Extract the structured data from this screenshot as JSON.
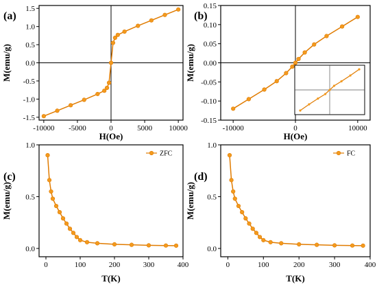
{
  "panel_labels": [
    "(a)",
    "(b)",
    "(c)",
    "(d)"
  ],
  "colors": {
    "series": "#f39a1e",
    "stroke": "#e07b00",
    "axis": "#000000"
  },
  "chart_data": [
    {
      "panel": "(a)",
      "type": "line",
      "xlabel": "H(Oe)",
      "ylabel": "M(emu/g)",
      "xlim": [
        -10700,
        10700
      ],
      "ylim": [
        -1.58,
        1.58
      ],
      "xticks": [
        -10000,
        -5000,
        0,
        5000,
        10000
      ],
      "yticks": [
        -1.5,
        -1.0,
        -0.5,
        0.0,
        0.5,
        1.0,
        1.5
      ],
      "x": [
        -10000,
        -8000,
        -6000,
        -4000,
        -2000,
        -1000,
        -600,
        -300,
        0,
        300,
        600,
        1000,
        2000,
        4000,
        6000,
        8000,
        10000
      ],
      "y": [
        -1.47,
        -1.32,
        -1.17,
        -1.02,
        -0.86,
        -0.77,
        -0.69,
        -0.55,
        0.0,
        0.55,
        0.69,
        0.77,
        0.86,
        1.02,
        1.17,
        1.32,
        1.47
      ]
    },
    {
      "panel": "(b)",
      "type": "line",
      "xlabel": "H(Oe)",
      "ylabel": "M(emu/g)",
      "xlim": [
        -12000,
        12000
      ],
      "ylim": [
        -0.15,
        0.15
      ],
      "xticks": [
        -10000,
        0,
        10000
      ],
      "yticks": [
        -0.15,
        -0.1,
        -0.05,
        0.0,
        0.05,
        0.1,
        0.15
      ],
      "x": [
        -10000,
        -7500,
        -5000,
        -3000,
        -1500,
        -500,
        0,
        500,
        1500,
        3000,
        5000,
        7500,
        10000
      ],
      "y": [
        -0.12,
        -0.095,
        -0.07,
        -0.048,
        -0.027,
        -0.01,
        0.0,
        0.01,
        0.027,
        0.048,
        0.07,
        0.095,
        0.12
      ],
      "inset": {
        "type": "line",
        "x": [
          -1.0,
          -0.7,
          -0.4,
          -0.15,
          0.0,
          0.15,
          0.4,
          0.7,
          1.0
        ],
        "y": [
          -1.0,
          -0.7,
          -0.42,
          -0.2,
          0.0,
          0.2,
          0.42,
          0.7,
          1.0
        ]
      }
    },
    {
      "panel": "(c)",
      "type": "line",
      "xlabel": "T(K)",
      "ylabel": "M(emu/g)",
      "legend": "ZFC",
      "legend_position": "top-right",
      "xlim": [
        -20,
        400
      ],
      "ylim": [
        -0.08,
        1.0
      ],
      "xticks": [
        0,
        100,
        200,
        300,
        400
      ],
      "yticks": [
        0.0,
        0.5,
        1.0
      ],
      "x": [
        5,
        10,
        15,
        20,
        30,
        40,
        50,
        60,
        70,
        80,
        90,
        100,
        120,
        150,
        200,
        250,
        300,
        350,
        380
      ],
      "y": [
        0.9,
        0.66,
        0.55,
        0.48,
        0.41,
        0.35,
        0.29,
        0.24,
        0.19,
        0.15,
        0.11,
        0.08,
        0.06,
        0.05,
        0.04,
        0.035,
        0.03,
        0.028,
        0.027
      ]
    },
    {
      "panel": "(d)",
      "type": "line",
      "xlabel": "T(K)",
      "ylabel": "M(emu/g)",
      "legend": "FC",
      "legend_position": "top-right",
      "xlim": [
        -20,
        400
      ],
      "ylim": [
        -0.08,
        1.0
      ],
      "xticks": [
        0,
        100,
        200,
        300,
        400
      ],
      "yticks": [
        0.0,
        0.5,
        1.0
      ],
      "x": [
        5,
        10,
        15,
        20,
        30,
        40,
        50,
        60,
        70,
        80,
        90,
        100,
        120,
        150,
        200,
        250,
        300,
        350,
        380
      ],
      "y": [
        0.9,
        0.66,
        0.55,
        0.48,
        0.41,
        0.35,
        0.29,
        0.24,
        0.19,
        0.15,
        0.11,
        0.08,
        0.06,
        0.05,
        0.04,
        0.035,
        0.03,
        0.028,
        0.027
      ]
    }
  ]
}
